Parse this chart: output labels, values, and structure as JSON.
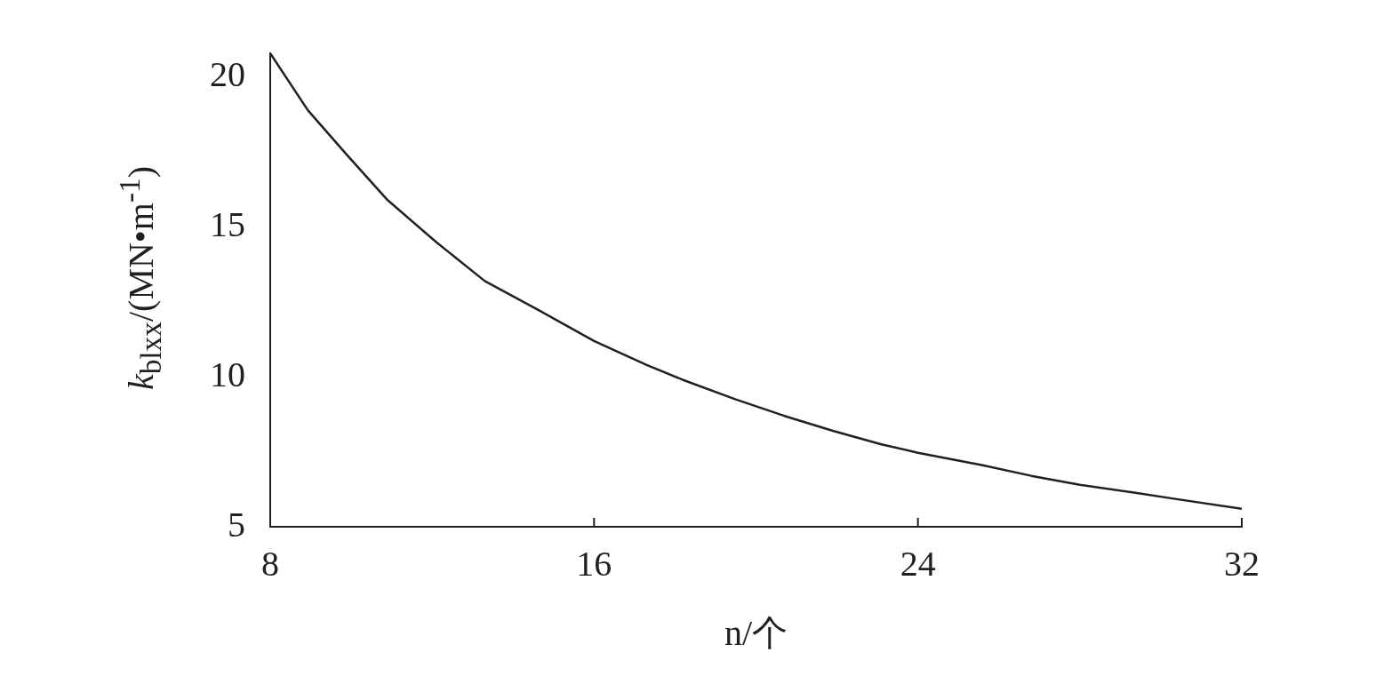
{
  "chart_data": {
    "type": "line",
    "xlabel": "n/个",
    "ylabel": "k$_{blxx}$/(MN•m$^{-1}$)",
    "xlim": [
      8,
      32
    ],
    "ylim": [
      5,
      20.8
    ],
    "xticks": [
      8,
      16,
      24,
      32
    ],
    "yticks": [
      5,
      10,
      15,
      20
    ],
    "grid": false,
    "legend": false,
    "marker": "none",
    "line_style": "solid",
    "series": [
      {
        "color": "#231f20",
        "x": [
          8,
          8.93,
          9.9,
          10.9,
          12.1,
          13.3,
          14.6,
          16,
          17.3,
          18.2,
          19.5,
          20.7,
          21.9,
          23.1,
          24,
          25.6,
          26.8,
          28,
          29.3,
          30.5,
          32
        ],
        "values": [
          20.8,
          18.9,
          17.4,
          15.9,
          14.5,
          13.2,
          12.25,
          11.2,
          10.4,
          9.9,
          9.25,
          8.7,
          8.2,
          7.75,
          7.47,
          7.05,
          6.7,
          6.4,
          6.15,
          5.9,
          5.6
        ]
      }
    ]
  }
}
